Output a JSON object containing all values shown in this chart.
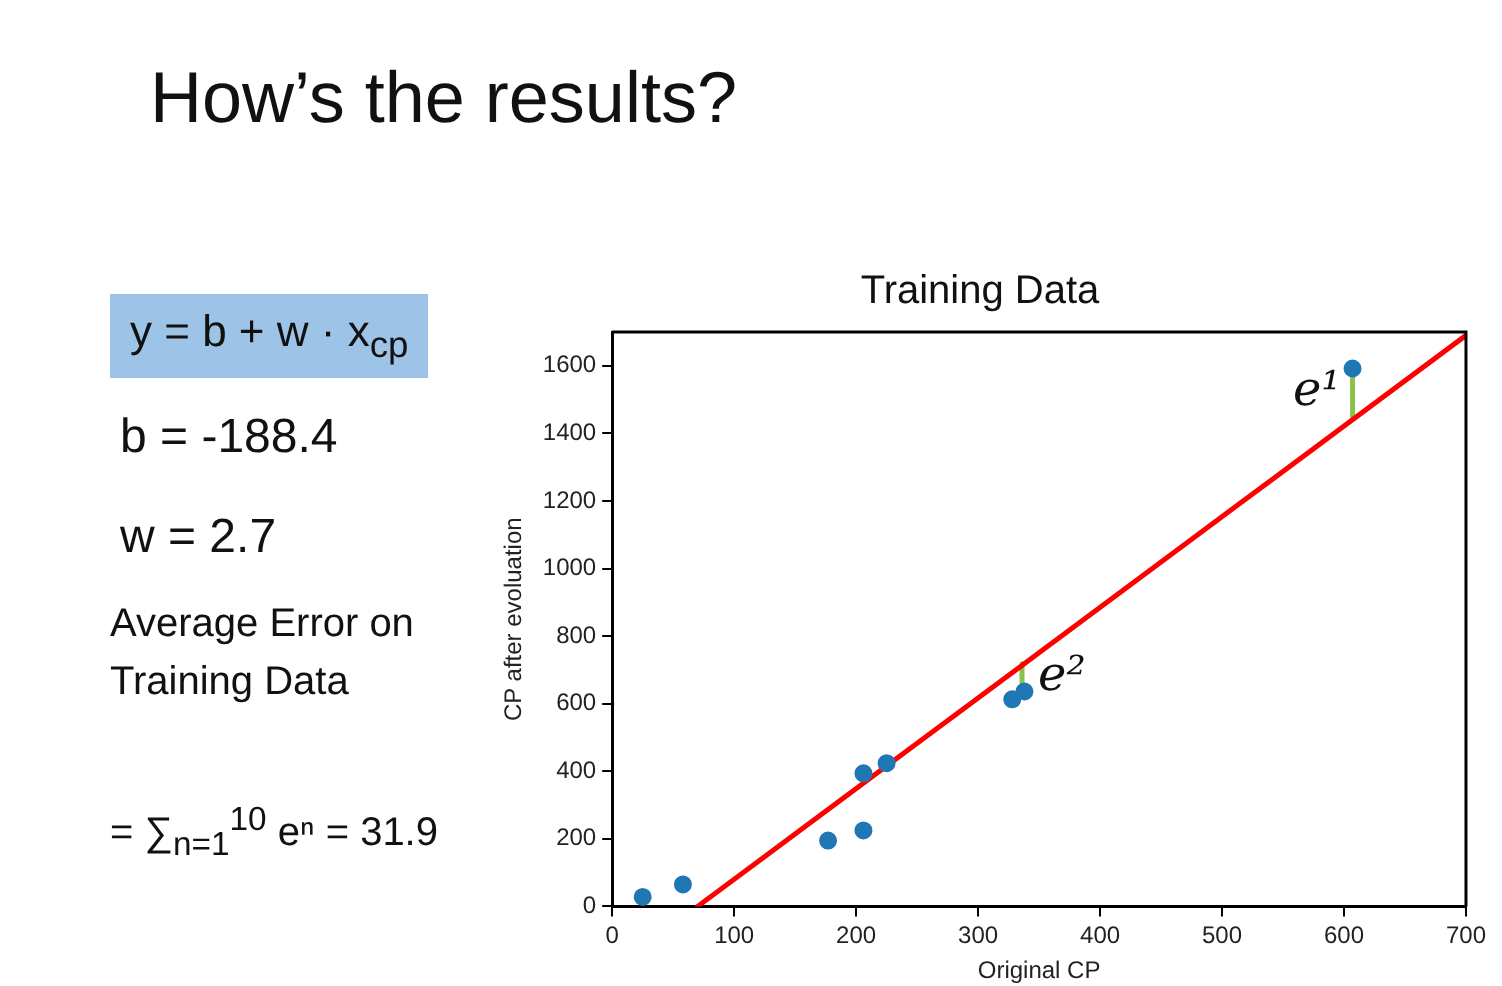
{
  "chart_data": {
    "type": "scatter",
    "title": "Training Data",
    "xlabel": "Original CP",
    "ylabel": "CP after evoluation",
    "xlim": [
      0,
      700
    ],
    "xticks": [
      0,
      100,
      200,
      300,
      400,
      500,
      600,
      700
    ],
    "ylim": [
      0,
      1700
    ],
    "yticks": [
      0,
      200,
      400,
      600,
      800,
      1000,
      1200,
      1400,
      1600
    ],
    "grid": false,
    "legend": false,
    "marker": "circle",
    "series": [
      {
        "type": "scatter",
        "color": "#1f77b4",
        "x": [
          25,
          58,
          177,
          206,
          206,
          225,
          328,
          338,
          607
        ],
        "values": [
          28,
          65,
          195,
          225,
          394,
          424,
          613,
          636,
          1592
        ]
      },
      {
        "type": "line",
        "marker": "none",
        "color": "#ff0000",
        "x": [
          70,
          700
        ],
        "values": [
          0,
          1690
        ]
      },
      {
        "type": "line",
        "marker": "none",
        "color": "#8bc34a",
        "x": [
          607,
          607
        ],
        "values": [
          1450,
          1592
        ]
      },
      {
        "type": "line",
        "marker": "none",
        "color": "#8bc34a",
        "x": [
          336,
          336
        ],
        "values": [
          655,
          718
        ]
      }
    ],
    "annotations": [
      {
        "text": "e¹",
        "x": 607,
        "y": 1520
      },
      {
        "text": "e²",
        "x": 336,
        "y": 677
      },
      "How’s the results?",
      "y = b + w · x$_{cp}$",
      "b = -188.4",
      "w = 2.7",
      "Average Error on Training Data",
      "= ∑$_{n=1}$$^{10}$ eⁿ = 31.9"
    ]
  }
}
